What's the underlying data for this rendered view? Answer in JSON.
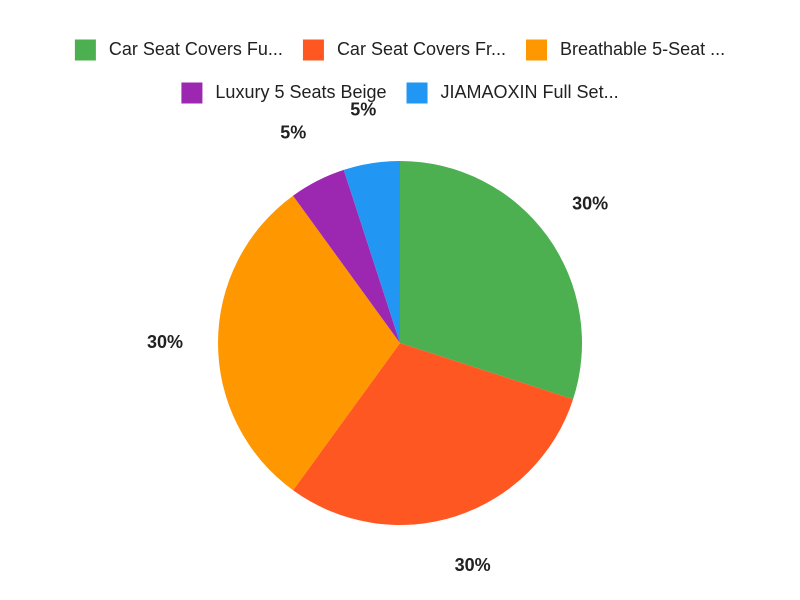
{
  "chart_data": {
    "type": "pie",
    "categories": [
      "Car Seat Covers Fu...",
      "Car Seat Covers Fr...",
      "Breathable 5-Seat ...",
      "Luxury 5 Seats Beige",
      "JIAMAOXIN Full Set..."
    ],
    "values": [
      30,
      30,
      30,
      5,
      5
    ],
    "value_labels": [
      "30%",
      "30%",
      "30%",
      "5%",
      "5%"
    ],
    "colors": [
      "#4caf50",
      "#ff5722",
      "#ff9800",
      "#9c27b0",
      "#2196f3"
    ],
    "legend": "top"
  }
}
